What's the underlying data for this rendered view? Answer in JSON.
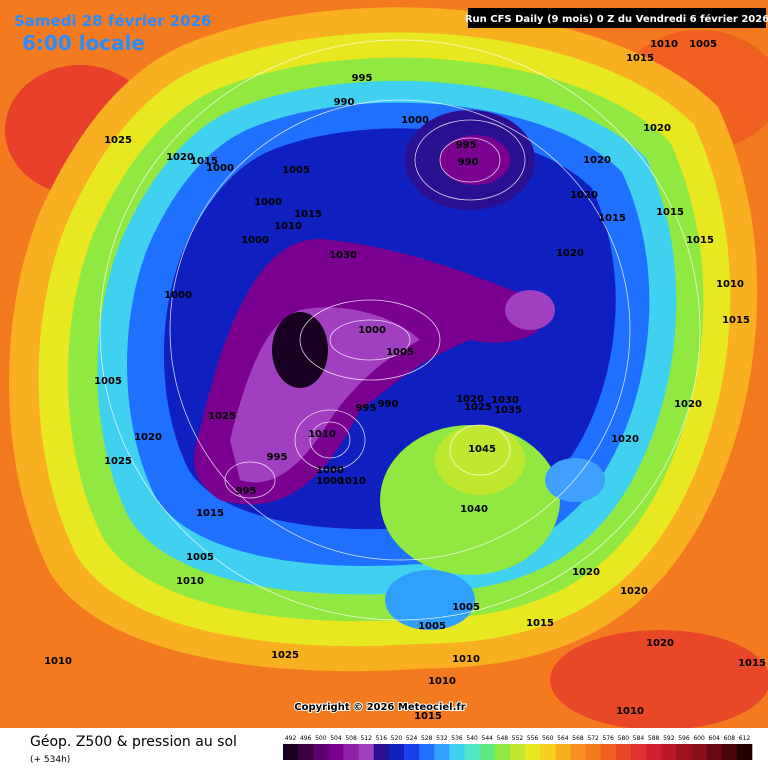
{
  "header": {
    "date": "Samedi 28 février 2026",
    "time": "6:00 locale",
    "run": "Run CFS Daily (9 mois) 0 Z du Vendredi 6 février 2026"
  },
  "isobar_labels": [
    1025,
    1020,
    1015,
    1000,
    1005,
    1000,
    1015,
    1010,
    1000,
    1000,
    1030,
    995,
    990,
    1000,
    995,
    990,
    1020,
    1020,
    1020,
    1015,
    1015,
    1015,
    1020,
    1010,
    1015,
    1000,
    1005,
    995,
    990,
    1020,
    1030,
    1025,
    1035,
    1020,
    1020,
    1045,
    1005,
    1020,
    1025,
    1025,
    1010,
    995,
    1000,
    1000,
    1010,
    995,
    1015,
    1040,
    1005,
    1010,
    1020,
    1020,
    1005,
    1015,
    1005,
    1020,
    1010,
    1025,
    1010,
    1010,
    1015,
    1010,
    1015,
    1010,
    1005,
    1015
  ],
  "copyright": "Copyright © 2026 Meteociel.fr",
  "footer": {
    "title": "Géop. Z500 & pression au sol",
    "lead": "(+ 534h)"
  },
  "legend": {
    "values": [
      492,
      496,
      500,
      504,
      508,
      512,
      516,
      520,
      524,
      528,
      532,
      536,
      540,
      544,
      548,
      552,
      556,
      560,
      564,
      568,
      572,
      576,
      580,
      584,
      588,
      592,
      596,
      600,
      604,
      608,
      612
    ],
    "colors": [
      "#1a0020",
      "#3a0040",
      "#5a0070",
      "#7a0090",
      "#9020a8",
      "#a040c0",
      "#2a1090",
      "#1020c0",
      "#1840e8",
      "#2070ff",
      "#30a0ff",
      "#40d0f0",
      "#50e8c0",
      "#60e880",
      "#90e840",
      "#c0e830",
      "#e8e820",
      "#f8d020",
      "#f8b020",
      "#f89020",
      "#f47a20",
      "#f06020",
      "#e84828",
      "#e03030",
      "#d02030",
      "#b81828",
      "#a01020",
      "#881018",
      "#680810",
      "#480408",
      "#200000"
    ]
  }
}
